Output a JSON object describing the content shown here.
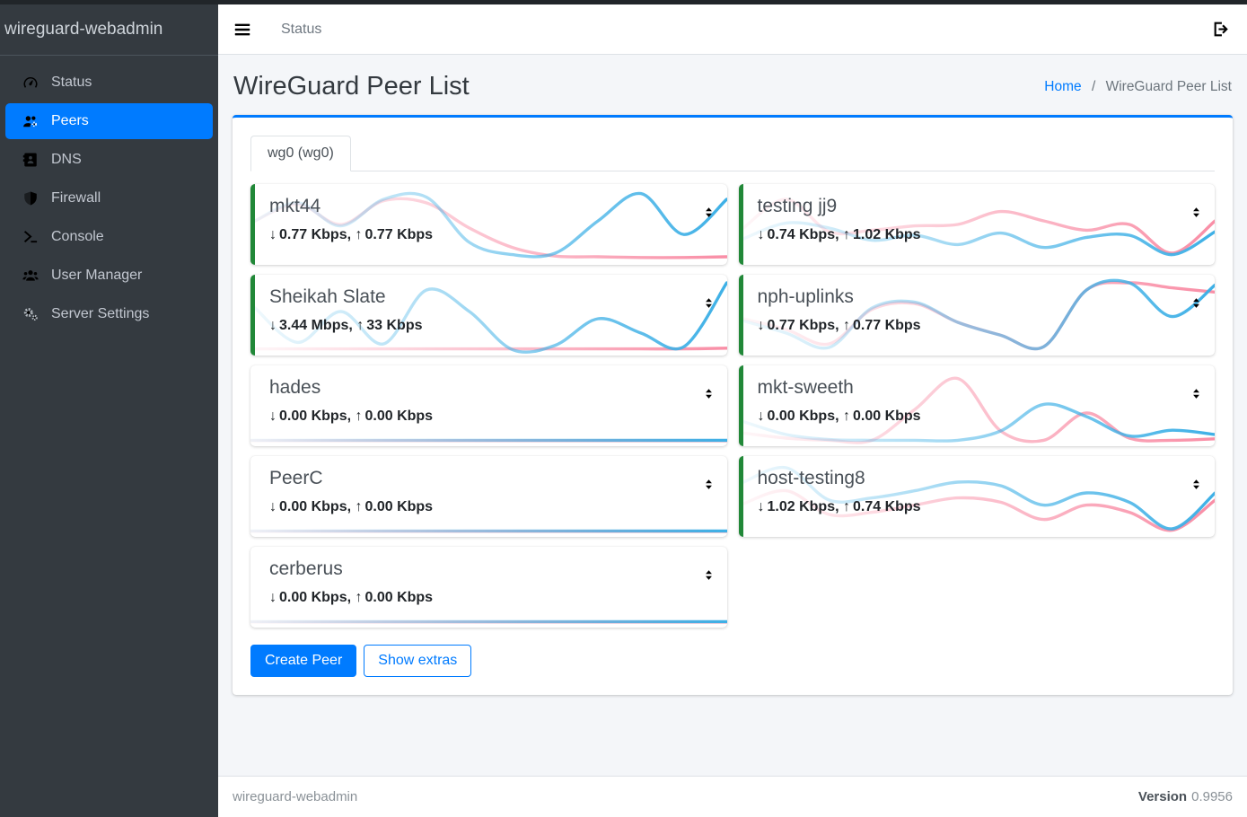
{
  "app": {
    "brand": "wireguard-webadmin"
  },
  "topnav": {
    "menu_label": "Status"
  },
  "sidebar": {
    "items": [
      {
        "label": "Status",
        "icon": "gauge",
        "active": false
      },
      {
        "label": "Peers",
        "icon": "users-gear",
        "active": true
      },
      {
        "label": "DNS",
        "icon": "address-book",
        "active": false
      },
      {
        "label": "Firewall",
        "icon": "shield",
        "active": false
      },
      {
        "label": "Console",
        "icon": "terminal",
        "active": false
      },
      {
        "label": "User Manager",
        "icon": "users",
        "active": false
      },
      {
        "label": "Server Settings",
        "icon": "gears",
        "active": false
      }
    ]
  },
  "page": {
    "title": "WireGuard Peer List",
    "breadcrumb": {
      "home": "Home",
      "separator": "/",
      "current": "WireGuard Peer List"
    }
  },
  "tab": {
    "label": "wg0 (wg0)"
  },
  "icons": {
    "down_arrow": "↓",
    "up_arrow": "↑"
  },
  "colors": {
    "accent": "#007bff",
    "online_green": "#218838",
    "spark_blue": "#3eb0e6",
    "spark_pink": "#f98ea6",
    "sidebar_bg": "#343a40"
  },
  "peers": [
    {
      "name": "mkt44",
      "down": "0.77 Kbps",
      "up": "0.77 Kbps",
      "online": true,
      "spark": {
        "blue": [
          0.55,
          0.8,
          0.48,
          0.85,
          0.88,
          0.25,
          0.08,
          0.1,
          0.55,
          0.93,
          0.36,
          0.85
        ],
        "pink": [
          0.55,
          0.78,
          0.5,
          0.83,
          0.8,
          0.45,
          0.18,
          0.06,
          0.05,
          0.04,
          0.04,
          0.05
        ]
      }
    },
    {
      "name": "testing jj9",
      "down": "0.74 Kbps",
      "up": "1.02 Kbps",
      "online": true,
      "spark": {
        "blue": [
          0.3,
          0.52,
          0.45,
          0.28,
          0.35,
          0.22,
          0.38,
          0.18,
          0.32,
          0.35,
          0.08,
          0.4
        ],
        "pink": [
          0.45,
          0.85,
          0.4,
          0.42,
          0.48,
          0.5,
          0.68,
          0.55,
          0.42,
          0.5,
          0.1,
          0.55
        ]
      }
    },
    {
      "name": "Sheikah Slate",
      "down": "3.44 Mbps",
      "up": "33 Kbps",
      "online": true,
      "spark": {
        "blue": [
          0.6,
          0.12,
          0.55,
          0.1,
          0.85,
          0.55,
          0.02,
          0.08,
          0.45,
          0.25,
          0.06,
          0.95
        ],
        "pink": [
          0.03,
          0.03,
          0.03,
          0.03,
          0.03,
          0.03,
          0.03,
          0.03,
          0.03,
          0.03,
          0.03,
          0.04
        ]
      }
    },
    {
      "name": "nph-uplinks",
      "down": "0.77 Kbps",
      "up": "0.77 Kbps",
      "online": true,
      "spark": {
        "blue": [
          0.42,
          0.25,
          0.05,
          0.6,
          0.68,
          0.4,
          0.22,
          0.06,
          0.85,
          0.95,
          0.48,
          0.92
        ],
        "pink": [
          0.45,
          0.3,
          0.1,
          0.58,
          0.66,
          0.4,
          0.22,
          0.06,
          0.85,
          0.95,
          0.88,
          0.82
        ]
      }
    },
    {
      "name": "hades",
      "down": "0.00 Kbps",
      "up": "0.00 Kbps",
      "online": false,
      "spark": {
        "blue": [
          0.02,
          0.02,
          0.02,
          0.02,
          0.02,
          0.02,
          0.02,
          0.02,
          0.02,
          0.02,
          0.02,
          0.02
        ],
        "pink": [
          0.015,
          0.015,
          0.015,
          0.015,
          0.015,
          0.015,
          0.015,
          0.015,
          0.015,
          0.015,
          0.015,
          0.015
        ]
      }
    },
    {
      "name": "mkt-sweeth",
      "down": "0.00 Kbps",
      "up": "0.00 Kbps",
      "online": true,
      "spark": {
        "blue": [
          0.28,
          0.1,
          0.03,
          0.02,
          0.02,
          0.02,
          0.15,
          0.52,
          0.35,
          0.08,
          0.16,
          0.1
        ],
        "pink": [
          0.12,
          0.05,
          0.02,
          0.02,
          0.45,
          0.88,
          0.15,
          0.02,
          0.4,
          0.05,
          0.02,
          0.04
        ]
      }
    },
    {
      "name": "PeerC",
      "down": "0.00 Kbps",
      "up": "0.00 Kbps",
      "online": false,
      "spark": {
        "blue": [
          0.02,
          0.02,
          0.02,
          0.02,
          0.02,
          0.02,
          0.02,
          0.02,
          0.02,
          0.02,
          0.02,
          0.02
        ],
        "pink": [
          0.015,
          0.015,
          0.015,
          0.015,
          0.015,
          0.015,
          0.015,
          0.015,
          0.015,
          0.015,
          0.015,
          0.015
        ]
      }
    },
    {
      "name": "host-testing8",
      "down": "1.02 Kbps",
      "up": "0.74 Kbps",
      "online": true,
      "spark": {
        "blue": [
          0.7,
          0.9,
          0.45,
          0.48,
          0.58,
          0.7,
          0.65,
          0.38,
          0.55,
          0.42,
          0.05,
          0.55
        ],
        "pink": [
          0.4,
          0.58,
          0.25,
          0.28,
          0.38,
          0.48,
          0.42,
          0.18,
          0.38,
          0.28,
          0.03,
          0.45
        ]
      }
    },
    {
      "name": "cerberus",
      "down": "0.00 Kbps",
      "up": "0.00 Kbps",
      "online": false,
      "spark": {
        "blue": [
          0.02,
          0.02,
          0.02,
          0.02,
          0.02,
          0.02,
          0.02,
          0.02,
          0.02,
          0.02,
          0.02,
          0.02
        ],
        "pink": [
          0.015,
          0.015,
          0.015,
          0.015,
          0.015,
          0.015,
          0.015,
          0.015,
          0.015,
          0.015,
          0.015,
          0.015
        ]
      }
    }
  ],
  "actions": {
    "create": "Create Peer",
    "extras": "Show extras"
  },
  "footer": {
    "brand": "wireguard-webadmin",
    "version_label": "Version",
    "version_value": "0.9956"
  }
}
